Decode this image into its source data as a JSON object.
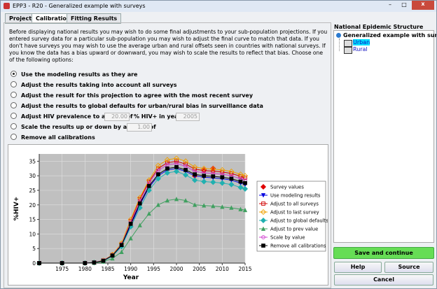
{
  "window": {
    "title": "EPP3 - R20 - Generalized example with surveys"
  },
  "tabs": [
    "Project",
    "Calibration",
    "Fitting Results"
  ],
  "intro": "Before displaying national results you may wish to do some final adjustments to your sub-population projections. If you entered survey data for a particular sub-population you may wish to adjust the final curve to match that data. If you don't have surveys you may wish to use the average urban and rural offsets seen in countries with national surveys. If you know the data has a bias upward or downward, you may wish to scale the results to reflect that bias. Choose one of the following options:",
  "options": [
    "Use the modeling results as they are",
    "Adjust the results taking into account all surveys",
    "Adjust the result for this projection to agree with the most recent survey",
    "Adjust the results to global defaults for urban/rural bias in surveillance data",
    "Adjust HIV prevalence to a value of",
    "Scale the results up or down by a factor of",
    "Remove all calibrations"
  ],
  "prevalence_input": {
    "value": "20.00",
    "year_label": "% HIV+ in year",
    "year": "2005"
  },
  "scale_input": {
    "value": "1.00"
  },
  "chart": {
    "type": "line",
    "x": [
      1970,
      1975,
      1980,
      1982,
      1984,
      1986,
      1988,
      1990,
      1992,
      1994,
      1996,
      1998,
      2000,
      2002,
      2004,
      2006,
      2008,
      2010,
      2012,
      2014,
      2015
    ],
    "xlim": [
      1970,
      2015
    ],
    "xticks": [
      1975,
      1980,
      1985,
      1990,
      1995,
      2000,
      2005,
      2010,
      2015
    ],
    "ylim": [
      0,
      37.5
    ],
    "yticks": [
      0,
      5,
      10,
      15,
      20,
      25,
      30,
      35
    ],
    "x_label": "Year",
    "y_label": "%HIV+",
    "grid": true,
    "series": [
      {
        "name": "Survey values",
        "color": "#e00000",
        "marker": "diamond-filled",
        "x": [
          2004,
          2006,
          2008
        ],
        "values": [
          30,
          32,
          32.5
        ]
      },
      {
        "name": "Use modeling results",
        "color": "#0000e0",
        "marker": "triangle-down",
        "values": [
          0,
          0,
          0,
          0.2,
          0.8,
          2.5,
          6,
          13,
          20,
          26,
          30,
          32,
          32.5,
          31.5,
          30,
          29.5,
          29.3,
          29,
          28.5,
          27.5,
          27
        ]
      },
      {
        "name": "Adjust to all surveys",
        "color": "#d00000",
        "marker": "square",
        "values": [
          0,
          0,
          0,
          0.2,
          0.9,
          2.8,
          6.6,
          14.5,
          22,
          28,
          32.5,
          34.5,
          35,
          34,
          32.3,
          31.8,
          31.6,
          31.3,
          30.8,
          29.8,
          29.3
        ]
      },
      {
        "name": "Adjust to last survey",
        "color": "#f0a000",
        "marker": "diamond",
        "values": [
          0,
          0,
          0,
          0.2,
          0.9,
          2.9,
          6.8,
          15,
          22.5,
          28.5,
          33.5,
          35.5,
          36,
          35,
          33,
          32.5,
          32.3,
          32,
          31.5,
          30.5,
          30
        ]
      },
      {
        "name": "Adjust to global defaults",
        "color": "#20b0b0",
        "marker": "diamond-filled",
        "values": [
          0,
          0,
          0,
          0.2,
          0.7,
          2.4,
          5.7,
          12.5,
          19,
          25,
          29,
          31,
          31.5,
          30.3,
          28.5,
          28,
          27.8,
          27.5,
          27,
          26,
          25.5
        ]
      },
      {
        "name": "Adjust to prev value",
        "color": "#40a060",
        "marker": "triangle-up",
        "values": [
          0,
          0,
          0,
          0.1,
          0.5,
          1.6,
          3.8,
          8.5,
          13,
          17,
          20,
          21.5,
          22,
          21.5,
          20,
          19.8,
          19.6,
          19.3,
          19,
          18.5,
          18.2
        ]
      },
      {
        "name": "Scale by value",
        "color": "#d040d0",
        "marker": "circle",
        "values": [
          0,
          0,
          0,
          0.2,
          0.9,
          2.7,
          6.4,
          14,
          21.3,
          27.5,
          31.8,
          33.8,
          34.2,
          33.3,
          31.5,
          31,
          30.8,
          30.5,
          30,
          29,
          28.5
        ]
      },
      {
        "name": "Remove all calibrations",
        "color": "#000000",
        "marker": "square-filled",
        "values": [
          0,
          0,
          0,
          0.2,
          0.8,
          2.6,
          6.2,
          13.5,
          20.5,
          26.5,
          30.5,
          32.5,
          33,
          32,
          30.5,
          30,
          29.8,
          29.5,
          29,
          28,
          27.5
        ]
      }
    ]
  },
  "structure": {
    "title": "National Epidemic Structure",
    "root": "Generalized example with surveys",
    "children": [
      "Urban",
      "Rural"
    ]
  },
  "buttons": {
    "save": "Save and continue",
    "help": "Help",
    "source": "Source",
    "cancel": "Cancel"
  }
}
